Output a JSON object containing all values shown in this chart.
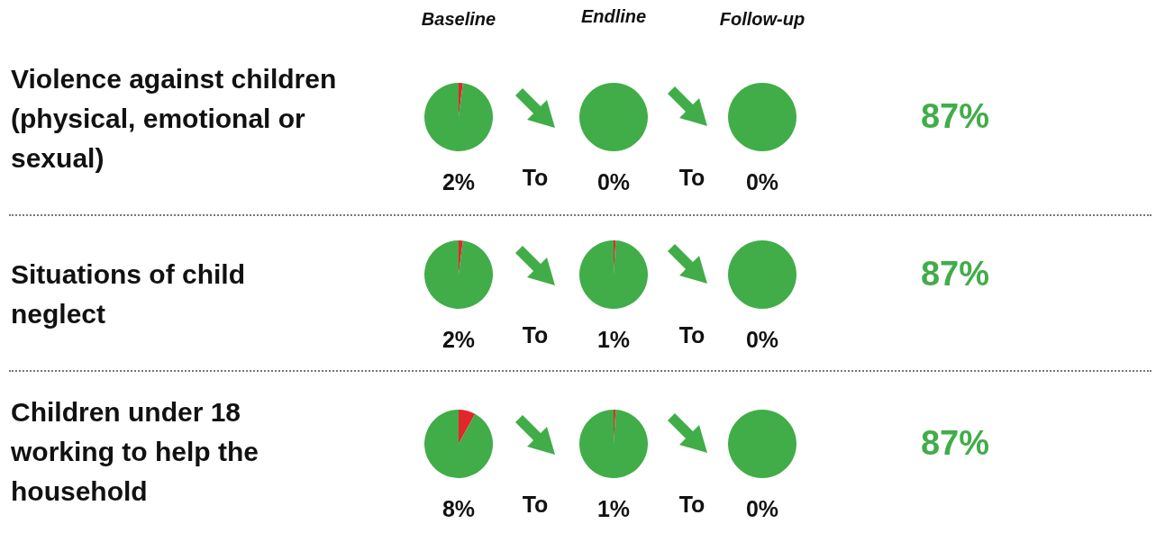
{
  "chart_data": [
    {
      "type": "pie",
      "title": "2%",
      "categories": [
        null,
        null
      ],
      "values": [
        2,
        98
      ],
      "colors": [
        "#e3262a",
        "#41ad49"
      ]
    },
    {
      "type": "pie",
      "title": "0%",
      "categories": [
        null,
        null
      ],
      "values": [
        0,
        100
      ],
      "colors": [
        "#e3262a",
        "#41ad49"
      ]
    },
    {
      "type": "pie",
      "title": "0%",
      "categories": [
        null,
        null
      ],
      "values": [
        0,
        100
      ],
      "colors": [
        "#e3262a",
        "#41ad49"
      ]
    },
    {
      "type": "pie",
      "title": "2%",
      "categories": [
        null,
        null
      ],
      "values": [
        2,
        98
      ],
      "colors": [
        "#e3262a",
        "#41ad49"
      ]
    },
    {
      "type": "pie",
      "title": "1%",
      "categories": [
        null,
        null
      ],
      "values": [
        1,
        99
      ],
      "colors": [
        "#e3262a",
        "#41ad49"
      ]
    },
    {
      "type": "pie",
      "title": "0%",
      "categories": [
        null,
        null
      ],
      "values": [
        0,
        100
      ],
      "colors": [
        "#e3262a",
        "#41ad49"
      ]
    },
    {
      "type": "pie",
      "title": "8%",
      "categories": [
        null,
        null
      ],
      "values": [
        8,
        92
      ],
      "colors": [
        "#e3262a",
        "#41ad49"
      ]
    },
    {
      "type": "pie",
      "title": "1%",
      "categories": [
        null,
        null
      ],
      "values": [
        1,
        99
      ],
      "colors": [
        "#e3262a",
        "#41ad49"
      ]
    },
    {
      "type": "pie",
      "title": "0%",
      "categories": [
        null,
        null
      ],
      "values": [
        0,
        100
      ],
      "colors": [
        "#e3262a",
        "#41ad49"
      ]
    },
    {
      "type": "other",
      "annotations": [
        "Baseline",
        "Endline",
        "Follow-up",
        "Violence against children (physical, emotional or sexual)",
        "Situations of child neglect",
        "Children under 18 working to help the household",
        "To",
        "To",
        "To",
        "To",
        "To",
        "To",
        "87%",
        "87%",
        "87%"
      ]
    }
  ]
}
